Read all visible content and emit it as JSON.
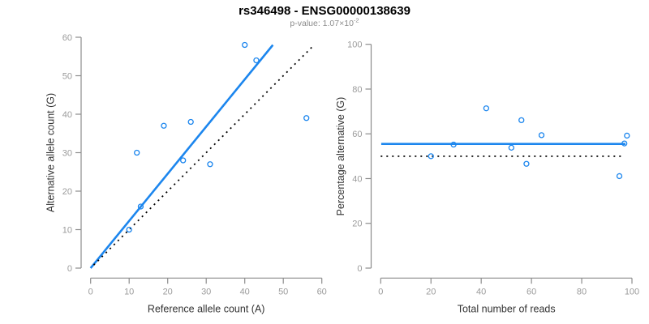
{
  "header": {
    "title": "rs346498 - ENSG00000138639",
    "pvalue_prefix": "p-value: 1.07×10",
    "pvalue_exponent": "-2"
  },
  "colors": {
    "accent_blue": "#1C86EE",
    "identity_black": "#000000",
    "axis": "#8c8c8c",
    "tick_label": "#9b9b9b",
    "axis_title": "#333333",
    "subtitle_gray": "#8c8c8c",
    "title_black": "#000000"
  },
  "chart_data": [
    {
      "type": "scatter",
      "title": "",
      "xlabel": "Reference allele count (A)",
      "ylabel": "Alternative allele count (G)",
      "xlim": [
        0,
        60
      ],
      "ylim": [
        0,
        60
      ],
      "xticks": [
        0,
        10,
        20,
        30,
        40,
        50,
        60
      ],
      "yticks": [
        0,
        10,
        20,
        30,
        40,
        50,
        60
      ],
      "grid": false,
      "legend": "none",
      "points": [
        [
          10,
          10
        ],
        [
          12,
          30
        ],
        [
          13,
          16
        ],
        [
          19,
          37
        ],
        [
          24,
          28
        ],
        [
          26,
          38
        ],
        [
          31,
          27
        ],
        [
          40,
          58
        ],
        [
          43,
          54
        ],
        [
          56,
          39
        ]
      ],
      "lines": [
        {
          "name": "fit-line",
          "style": "solid",
          "color": "#1C86EE",
          "from": [
            0,
            0
          ],
          "to": [
            47.3,
            58
          ]
        },
        {
          "name": "identity-line",
          "style": "dotted",
          "color": "#000000",
          "from": [
            0.8,
            0.8
          ],
          "to": [
            57.8,
            57.8
          ]
        }
      ]
    },
    {
      "type": "scatter",
      "title": "",
      "xlabel": "Total number of reads",
      "ylabel": "Percentage alternative (G)",
      "xlim": [
        0,
        100
      ],
      "ylim": [
        0,
        100
      ],
      "xticks": [
        0,
        20,
        40,
        60,
        80,
        100
      ],
      "yticks": [
        0,
        20,
        40,
        60,
        80,
        100
      ],
      "grid": false,
      "legend": "none",
      "points": [
        [
          20,
          50
        ],
        [
          29,
          55.2
        ],
        [
          42,
          71.4
        ],
        [
          52,
          53.8
        ],
        [
          56,
          66.1
        ],
        [
          58,
          46.6
        ],
        [
          64,
          59.4
        ],
        [
          95,
          41.1
        ],
        [
          97,
          55.7
        ],
        [
          98,
          59.2
        ]
      ],
      "lines": [
        {
          "name": "fit-line",
          "style": "solid",
          "color": "#1C86EE",
          "from": [
            0.2,
            55.5
          ],
          "to": [
            97.4,
            55.5
          ]
        },
        {
          "name": "identity-line",
          "style": "dotted",
          "color": "#000000",
          "from": [
            0,
            50
          ],
          "to": [
            96.5,
            50
          ]
        }
      ]
    }
  ]
}
